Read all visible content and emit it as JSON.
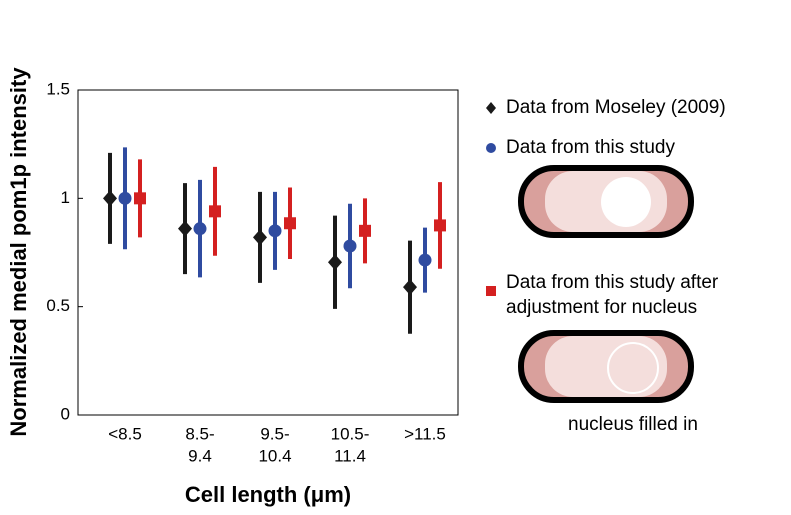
{
  "chart_data": {
    "type": "errorbar",
    "ylabel": "Normalized medial pom1p intensity",
    "xlabel": "Cell  length (μm)",
    "categories": [
      [
        "<8.5"
      ],
      [
        "8.5-",
        "9.4"
      ],
      [
        "9.5-",
        "10.4"
      ],
      [
        "10.5-",
        "11.4"
      ],
      [
        ">11.5"
      ]
    ],
    "ylim": [
      0,
      1.5
    ],
    "yticks": [
      0,
      0.5,
      1,
      1.5
    ],
    "series": [
      {
        "name": "Data from Moseley (2009)",
        "color": "#1a1a1a",
        "marker": "diamond",
        "values": [
          1.0,
          0.86,
          0.82,
          0.705,
          0.59
        ],
        "errors": [
          0.21,
          0.21,
          0.21,
          0.215,
          0.215
        ]
      },
      {
        "name": "Data from this study",
        "color": "#2f4ba0",
        "marker": "circle",
        "values": [
          1.0,
          0.86,
          0.85,
          0.78,
          0.715
        ],
        "errors": [
          0.235,
          0.225,
          0.18,
          0.195,
          0.15
        ]
      },
      {
        "name": "Data from this study after adjustment for nucleus",
        "color": "#d42020",
        "marker": "square",
        "values": [
          1.0,
          0.94,
          0.885,
          0.85,
          0.875
        ],
        "errors": [
          0.18,
          0.205,
          0.165,
          0.15,
          0.2
        ]
      }
    ],
    "annotation": "nucleus filled in"
  }
}
